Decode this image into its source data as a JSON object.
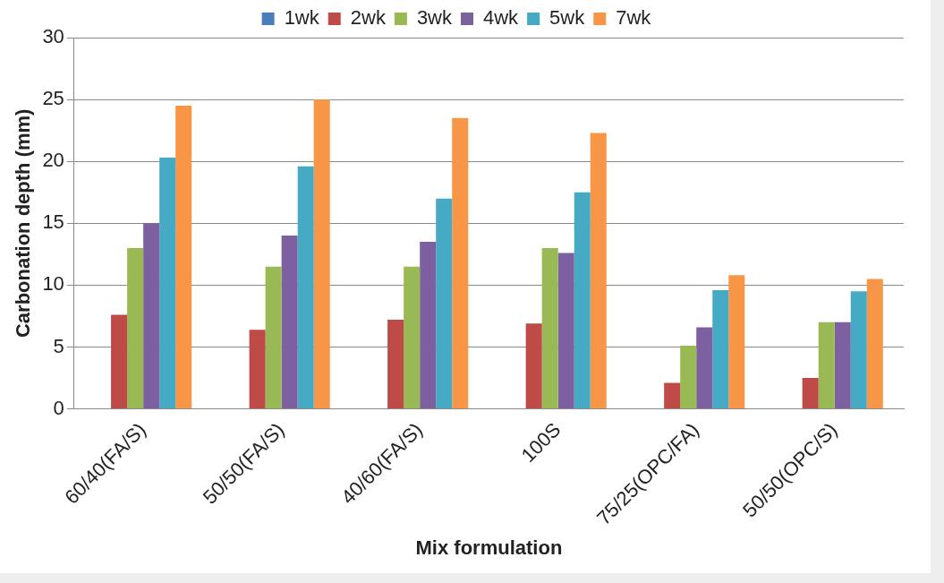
{
  "chart_data": {
    "type": "bar",
    "xlabel": "Mix formulation",
    "ylabel": "Carbonation depth (mm)",
    "categories": [
      "60/40(FA/S)",
      "50/50(FA/S)",
      "40/60(FA/S)",
      "100S",
      "75/25(OPC/FA)",
      "50/50(OPC/S)"
    ],
    "series": [
      {
        "name": "1wk",
        "color": "#4a7ebb",
        "values": [
          0,
          0,
          0,
          0,
          0,
          0
        ]
      },
      {
        "name": "2wk",
        "color": "#be4b48",
        "values": [
          7.6,
          6.4,
          7.2,
          6.9,
          2.1,
          2.5
        ]
      },
      {
        "name": "3wk",
        "color": "#98b954",
        "values": [
          13.0,
          11.5,
          11.5,
          13.0,
          5.1,
          7.0
        ]
      },
      {
        "name": "4wk",
        "color": "#7d60a0",
        "values": [
          15.0,
          14.0,
          13.5,
          12.6,
          6.6,
          7.0
        ]
      },
      {
        "name": "5wk",
        "color": "#46aac5",
        "values": [
          20.3,
          19.6,
          17.0,
          17.5,
          9.6,
          9.5
        ]
      },
      {
        "name": "7wk",
        "color": "#f79646",
        "values": [
          24.5,
          25.0,
          23.5,
          22.3,
          10.8,
          10.5
        ]
      }
    ],
    "ylim": [
      0,
      30
    ],
    "yticks": [
      0,
      5,
      10,
      15,
      20,
      25,
      30
    ],
    "grid": "y",
    "legend": "top"
  }
}
